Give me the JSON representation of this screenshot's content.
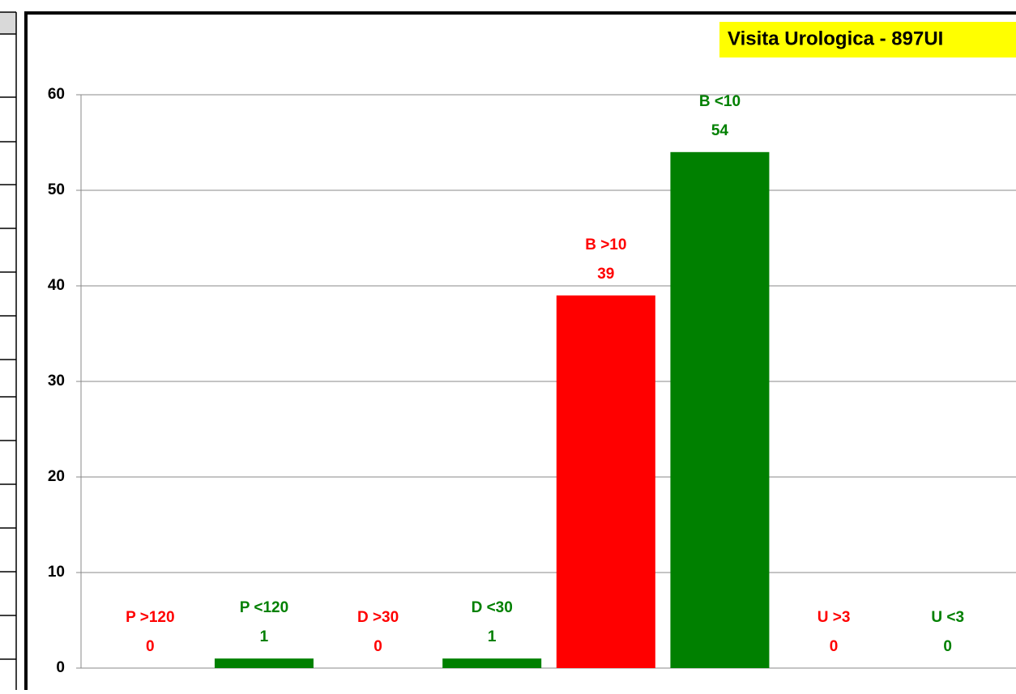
{
  "chart_data": {
    "type": "bar",
    "title": "Visita Urologica - 897UI",
    "categories": [
      "P >120",
      "P <120",
      "D >30",
      "D <30",
      "B >10",
      "B <10",
      "U >3",
      "U <3"
    ],
    "values": [
      0,
      1,
      0,
      1,
      39,
      54,
      0,
      0
    ],
    "colors": [
      "#ff0000",
      "#008000",
      "#ff0000",
      "#008000",
      "#ff0000",
      "#008000",
      "#ff0000",
      "#008000"
    ],
    "ylim": [
      0,
      60
    ],
    "yticks": [
      0,
      10,
      20,
      30,
      40,
      50,
      60
    ],
    "grid": true
  }
}
